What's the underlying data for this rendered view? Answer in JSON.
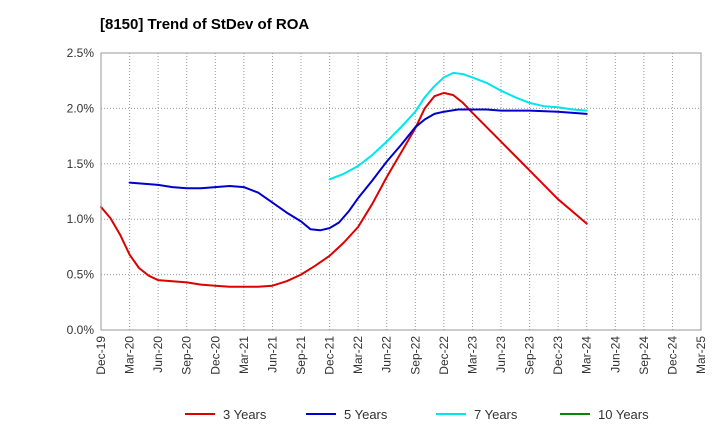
{
  "chart_data": {
    "type": "line",
    "title": "[8150]  Trend of StDev of ROA",
    "xlabel": "",
    "ylabel": "",
    "ylim": [
      0,
      2.5
    ],
    "y_ticks": [
      "0.0%",
      "0.5%",
      "1.0%",
      "1.5%",
      "2.0%",
      "2.5%"
    ],
    "y_tick_values": [
      0,
      0.5,
      1.0,
      1.5,
      2.0,
      2.5
    ],
    "x_categories": [
      "Dec-19",
      "Mar-20",
      "Jun-20",
      "Sep-20",
      "Dec-20",
      "Mar-21",
      "Jun-21",
      "Sep-21",
      "Dec-21",
      "Mar-22",
      "Jun-22",
      "Sep-22",
      "Dec-22",
      "Mar-23",
      "Jun-23",
      "Sep-23",
      "Dec-23",
      "Mar-24",
      "Jun-24",
      "Sep-24",
      "Dec-24",
      "Mar-25"
    ],
    "grid": true,
    "legend_position": "bottom",
    "series": [
      {
        "name": "3 Years",
        "color": "#dd0000",
        "points": [
          [
            0,
            1.11
          ],
          [
            0.33,
            1.01
          ],
          [
            0.67,
            0.86
          ],
          [
            1,
            0.68
          ],
          [
            1.33,
            0.56
          ],
          [
            1.67,
            0.49
          ],
          [
            2,
            0.45
          ],
          [
            2.5,
            0.44
          ],
          [
            3,
            0.43
          ],
          [
            3.5,
            0.41
          ],
          [
            4,
            0.4
          ],
          [
            4.5,
            0.39
          ],
          [
            5,
            0.39
          ],
          [
            5.5,
            0.39
          ],
          [
            6,
            0.4
          ],
          [
            6.5,
            0.44
          ],
          [
            7,
            0.5
          ],
          [
            7.5,
            0.58
          ],
          [
            8,
            0.67
          ],
          [
            8.5,
            0.79
          ],
          [
            9,
            0.93
          ],
          [
            9.5,
            1.14
          ],
          [
            10,
            1.38
          ],
          [
            10.5,
            1.6
          ],
          [
            11,
            1.82
          ],
          [
            11.33,
            2.0
          ],
          [
            11.67,
            2.11
          ],
          [
            12,
            2.14
          ],
          [
            12.33,
            2.12
          ],
          [
            12.67,
            2.05
          ],
          [
            13,
            1.96
          ],
          [
            13.5,
            1.83
          ],
          [
            14,
            1.7
          ],
          [
            14.5,
            1.57
          ],
          [
            15,
            1.44
          ],
          [
            15.5,
            1.31
          ],
          [
            16,
            1.18
          ],
          [
            16.5,
            1.07
          ],
          [
            17,
            0.96
          ]
        ]
      },
      {
        "name": "5 Years",
        "color": "#0000cc",
        "points": [
          [
            1,
            1.33
          ],
          [
            1.5,
            1.32
          ],
          [
            2,
            1.31
          ],
          [
            2.5,
            1.29
          ],
          [
            3,
            1.28
          ],
          [
            3.5,
            1.28
          ],
          [
            4,
            1.29
          ],
          [
            4.5,
            1.3
          ],
          [
            5,
            1.29
          ],
          [
            5.5,
            1.24
          ],
          [
            6,
            1.15
          ],
          [
            6.5,
            1.06
          ],
          [
            7,
            0.98
          ],
          [
            7.33,
            0.91
          ],
          [
            7.67,
            0.9
          ],
          [
            8,
            0.92
          ],
          [
            8.33,
            0.97
          ],
          [
            8.67,
            1.07
          ],
          [
            9,
            1.19
          ],
          [
            9.5,
            1.35
          ],
          [
            10,
            1.52
          ],
          [
            10.5,
            1.67
          ],
          [
            11,
            1.83
          ],
          [
            11.33,
            1.9
          ],
          [
            11.67,
            1.95
          ],
          [
            12,
            1.97
          ],
          [
            12.5,
            1.99
          ],
          [
            13,
            1.99
          ],
          [
            13.5,
            1.99
          ],
          [
            14,
            1.98
          ],
          [
            15,
            1.98
          ],
          [
            16,
            1.97
          ],
          [
            17,
            1.95
          ]
        ]
      },
      {
        "name": "7 Years",
        "color": "#00e5ee",
        "points": [
          [
            8,
            1.36
          ],
          [
            8.5,
            1.41
          ],
          [
            9,
            1.48
          ],
          [
            9.5,
            1.58
          ],
          [
            10,
            1.7
          ],
          [
            10.5,
            1.83
          ],
          [
            11,
            1.97
          ],
          [
            11.33,
            2.1
          ],
          [
            11.67,
            2.2
          ],
          [
            12,
            2.28
          ],
          [
            12.33,
            2.32
          ],
          [
            12.67,
            2.31
          ],
          [
            13,
            2.28
          ],
          [
            13.5,
            2.23
          ],
          [
            14,
            2.16
          ],
          [
            14.5,
            2.1
          ],
          [
            15,
            2.05
          ],
          [
            15.5,
            2.02
          ],
          [
            16,
            2.01
          ],
          [
            16.5,
            1.99
          ],
          [
            17,
            1.98
          ]
        ]
      },
      {
        "name": "10 Years",
        "color": "#008800",
        "points": []
      }
    ]
  }
}
